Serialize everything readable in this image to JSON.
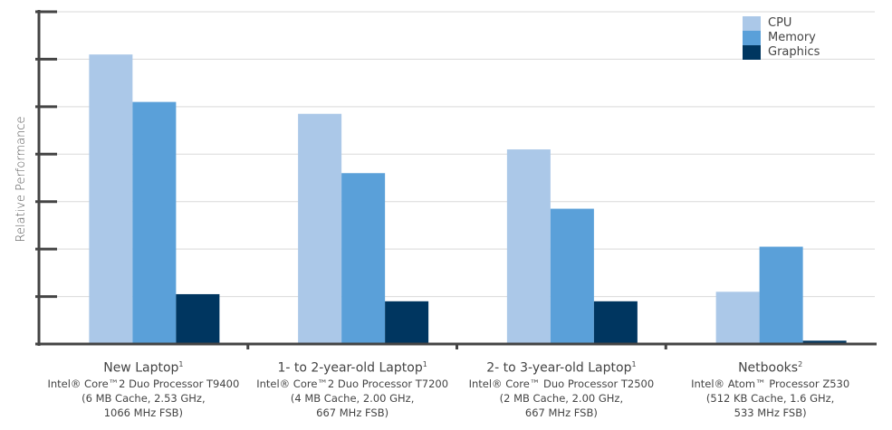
{
  "chart_data": {
    "type": "bar",
    "ylabel": "Relative Performance",
    "ylim": [
      0,
      7
    ],
    "grid": true,
    "legend_position": "top-right",
    "categories": [
      {
        "title": "New Laptop",
        "footnote": "1",
        "lines": [
          "Intel® Core™2 Duo Processor T9400",
          "(6 MB Cache, 2.53 GHz,",
          "1066 MHz FSB)"
        ]
      },
      {
        "title": "1- to 2-year-old Laptop",
        "footnote": "1",
        "lines": [
          "Intel® Core™2 Duo Processor T7200",
          "(4 MB Cache, 2.00 GHz,",
          "667 MHz FSB)"
        ]
      },
      {
        "title": "2- to 3-year-old Laptop",
        "footnote": "1",
        "lines": [
          "Intel® Core™ Duo Processor T2500",
          "(2 MB Cache, 2.00 GHz,",
          "667 MHz FSB)"
        ]
      },
      {
        "title": "Netbooks",
        "footnote": "2",
        "lines": [
          "Intel® Atom™ Processor Z530",
          "(512 KB Cache, 1.6 GHz,",
          "533 MHz FSB)"
        ]
      }
    ],
    "series": [
      {
        "name": "CPU",
        "color": "#abc8e8",
        "values": [
          6.1,
          4.85,
          4.1,
          1.1
        ]
      },
      {
        "name": "Memory",
        "color": "#5aa0d9",
        "values": [
          5.1,
          3.6,
          2.85,
          2.05
        ]
      },
      {
        "name": "Graphics",
        "color": "#003660",
        "values": [
          1.05,
          0.9,
          0.9,
          0.07
        ]
      }
    ]
  }
}
